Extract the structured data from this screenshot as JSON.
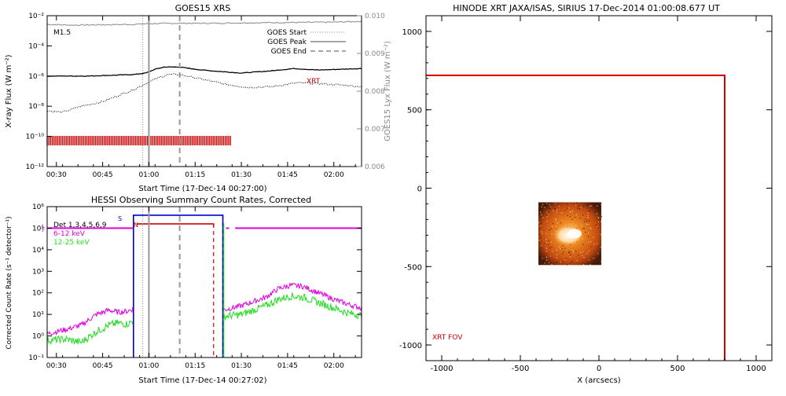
{
  "colors": {
    "bg": "#ffffff",
    "axis": "#000000",
    "goes_lyx": "#888888",
    "xrt_red": "#d40000",
    "magenta": "#e000e0",
    "green": "#22dd22",
    "blue": "#0000d0",
    "fov_red": "#d40000"
  },
  "chart_data": [
    {
      "type": "line",
      "title": "GOES15 XRS",
      "xlabel": "Start Time (17-Dec-14 00:27:00)",
      "ylabel": "X-ray Flux (W m⁻²)",
      "ylabel2": "GOES15 Lyx Flux (W m⁻²)",
      "x_ticks": [
        "00:30",
        "00:45",
        "01:00",
        "01:15",
        "01:30",
        "01:45",
        "02:00"
      ],
      "y_ticks": [
        "10⁻²",
        "10⁻⁴",
        "10⁻⁶",
        "10⁻⁸",
        "10⁻¹⁰",
        "10⁻¹²"
      ],
      "y2_ticks": [
        "0.010",
        "0.009",
        "0.008",
        "0.007",
        "0.006"
      ],
      "xlim": [
        "00:27",
        "02:09"
      ],
      "ylim_log10": [
        -12,
        -2
      ],
      "y2lim": [
        0.006,
        0.01
      ],
      "annotations": {
        "class": "M1.5",
        "xrt": "XRT"
      },
      "legend": [
        {
          "label": "GOES Start",
          "style": "dotted"
        },
        {
          "label": "GOES Peak",
          "style": "solid"
        },
        {
          "label": "GOES End",
          "style": "dashed"
        }
      ],
      "event_lines": {
        "start": "00:58",
        "peak": "01:00",
        "end": "01:10"
      },
      "series": [
        {
          "x": [
            "00:27",
            "00:40",
            "00:55",
            "00:59",
            "01:02",
            "01:05",
            "01:10",
            "01:15",
            "01:20",
            "01:30",
            "01:40",
            "01:47",
            "01:55",
            "02:02",
            "02:09"
          ],
          "log10_values": [
            -6.0,
            -6.0,
            -5.9,
            -5.8,
            -5.55,
            -5.4,
            -5.4,
            -5.55,
            -5.65,
            -5.8,
            -5.65,
            -5.5,
            -5.6,
            -5.55,
            -5.5
          ]
        },
        {
          "x": [
            "00:27",
            "00:32",
            "00:38",
            "00:45",
            "00:50",
            "00:55",
            "00:59",
            "01:02",
            "01:06",
            "01:10",
            "01:17",
            "01:25",
            "01:32",
            "01:40",
            "01:48",
            "01:55",
            "02:03",
            "02:09"
          ],
          "log10_values": [
            -8.3,
            -8.4,
            -8.0,
            -7.7,
            -7.3,
            -6.9,
            -6.5,
            -6.2,
            -5.9,
            -5.9,
            -6.2,
            -6.55,
            -6.75,
            -6.7,
            -6.45,
            -6.5,
            -6.6,
            -6.7
          ]
        },
        {
          "x": [
            "00:27",
            "00:35",
            "00:45",
            "00:55",
            "01:00",
            "01:10",
            "01:20",
            "01:30",
            "01:45",
            "02:00",
            "02:09"
          ],
          "lyx_values": [
            0.00977,
            0.00975,
            0.00976,
            0.00977,
            0.00979,
            0.0098,
            0.0098,
            0.00981,
            0.00982,
            0.00983,
            0.00985
          ]
        }
      ],
      "xrt_obs": {
        "start": "00:27",
        "end": "01:27"
      }
    },
    {
      "type": "line",
      "title": "HESSI Observing Summary Count Rates, Corrected",
      "xlabel": "Start Time (17-Dec-14 00:27:02)",
      "ylabel": "Corrected Count Rate (s⁻¹ detector⁻¹)",
      "x_ticks": [
        "00:30",
        "00:45",
        "01:00",
        "01:15",
        "01:30",
        "01:45",
        "02:00"
      ],
      "y_ticks": [
        "10⁶",
        "10⁵",
        "10⁴",
        "10³",
        "10²",
        "10¹",
        "10⁰",
        "10⁻¹"
      ],
      "xlim": [
        "00:27",
        "02:09"
      ],
      "ylim_log10": [
        -1,
        6
      ],
      "legend": [
        {
          "label": "Det 1,3,4,5,6,9",
          "color": "#000000"
        },
        {
          "label": "6-12 keV",
          "color": "#e000e0"
        },
        {
          "label": "12-25 keV",
          "color": "#22dd22"
        }
      ],
      "flags": {
        "F": "F",
        "S": "S",
        "N": "N"
      },
      "event_lines": {
        "start": "00:58",
        "peak": "01:00",
        "end": "01:10",
        "night_end": "01:21",
        "saa_end": "01:24"
      },
      "series": [
        {
          "name": "6-12 keV",
          "x": [
            "00:27",
            "00:33",
            "00:38",
            "00:43",
            "00:47",
            "00:50",
            "00:53",
            "00:55"
          ],
          "log10_values": [
            0.1,
            0.3,
            0.5,
            1.0,
            1.2,
            1.1,
            1.15,
            1.25
          ]
        },
        {
          "name": "6-12 keV",
          "x": [
            "01:24",
            "01:30",
            "01:38",
            "01:42",
            "01:46",
            "01:50",
            "01:55",
            "02:00",
            "02:05",
            "02:09"
          ],
          "log10_values": [
            1.2,
            1.4,
            1.8,
            2.2,
            2.35,
            2.3,
            2.0,
            1.7,
            1.45,
            1.3
          ]
        },
        {
          "name": "12-25 keV",
          "x": [
            "00:27",
            "00:33",
            "00:38",
            "00:43",
            "00:47",
            "00:50",
            "00:53",
            "00:55"
          ],
          "log10_values": [
            -0.2,
            -0.15,
            -0.3,
            0.2,
            0.5,
            0.6,
            0.55,
            0.7
          ]
        },
        {
          "name": "12-25 keV",
          "x": [
            "01:24",
            "01:30",
            "01:38",
            "01:42",
            "01:46",
            "01:50",
            "01:55",
            "02:00",
            "02:05",
            "02:09"
          ],
          "log10_values": [
            0.9,
            1.0,
            1.4,
            1.7,
            1.85,
            1.8,
            1.55,
            1.3,
            1.05,
            0.95
          ]
        }
      ],
      "saa_flag": {
        "start": "00:55",
        "end": "01:24",
        "log10_level": 5.6
      },
      "night_flag": {
        "start": "00:56",
        "end": "01:21",
        "log10_level": 5.2
      },
      "level_flag": {
        "log10_level": 5.0,
        "segments": [
          [
            "00:27",
            "00:55"
          ],
          [
            "01:25",
            "01:26"
          ],
          [
            "01:28",
            "02:09"
          ]
        ]
      }
    },
    {
      "type": "heatmap",
      "title": "HINODE XRT JAXA/ISAS, SIRIUS 17-Dec-2014 01:00:08.677 UT",
      "xlabel": "X (arcsecs)",
      "x_ticks": [
        "-1000",
        "-500",
        "0",
        "500",
        "1000"
      ],
      "y_ticks": [
        "1000",
        "500",
        "0",
        "-500",
        "-1000"
      ],
      "xlim": [
        -1100,
        1100
      ],
      "ylim": [
        -1100,
        1100
      ],
      "fov_label": "XRT FOV",
      "fov_box": {
        "x1": -1100,
        "x2": 800,
        "y1": -1100,
        "y2": 720
      },
      "image_box": {
        "x1": -385,
        "x2": 15,
        "y1": -490,
        "y2": -90
      }
    }
  ]
}
